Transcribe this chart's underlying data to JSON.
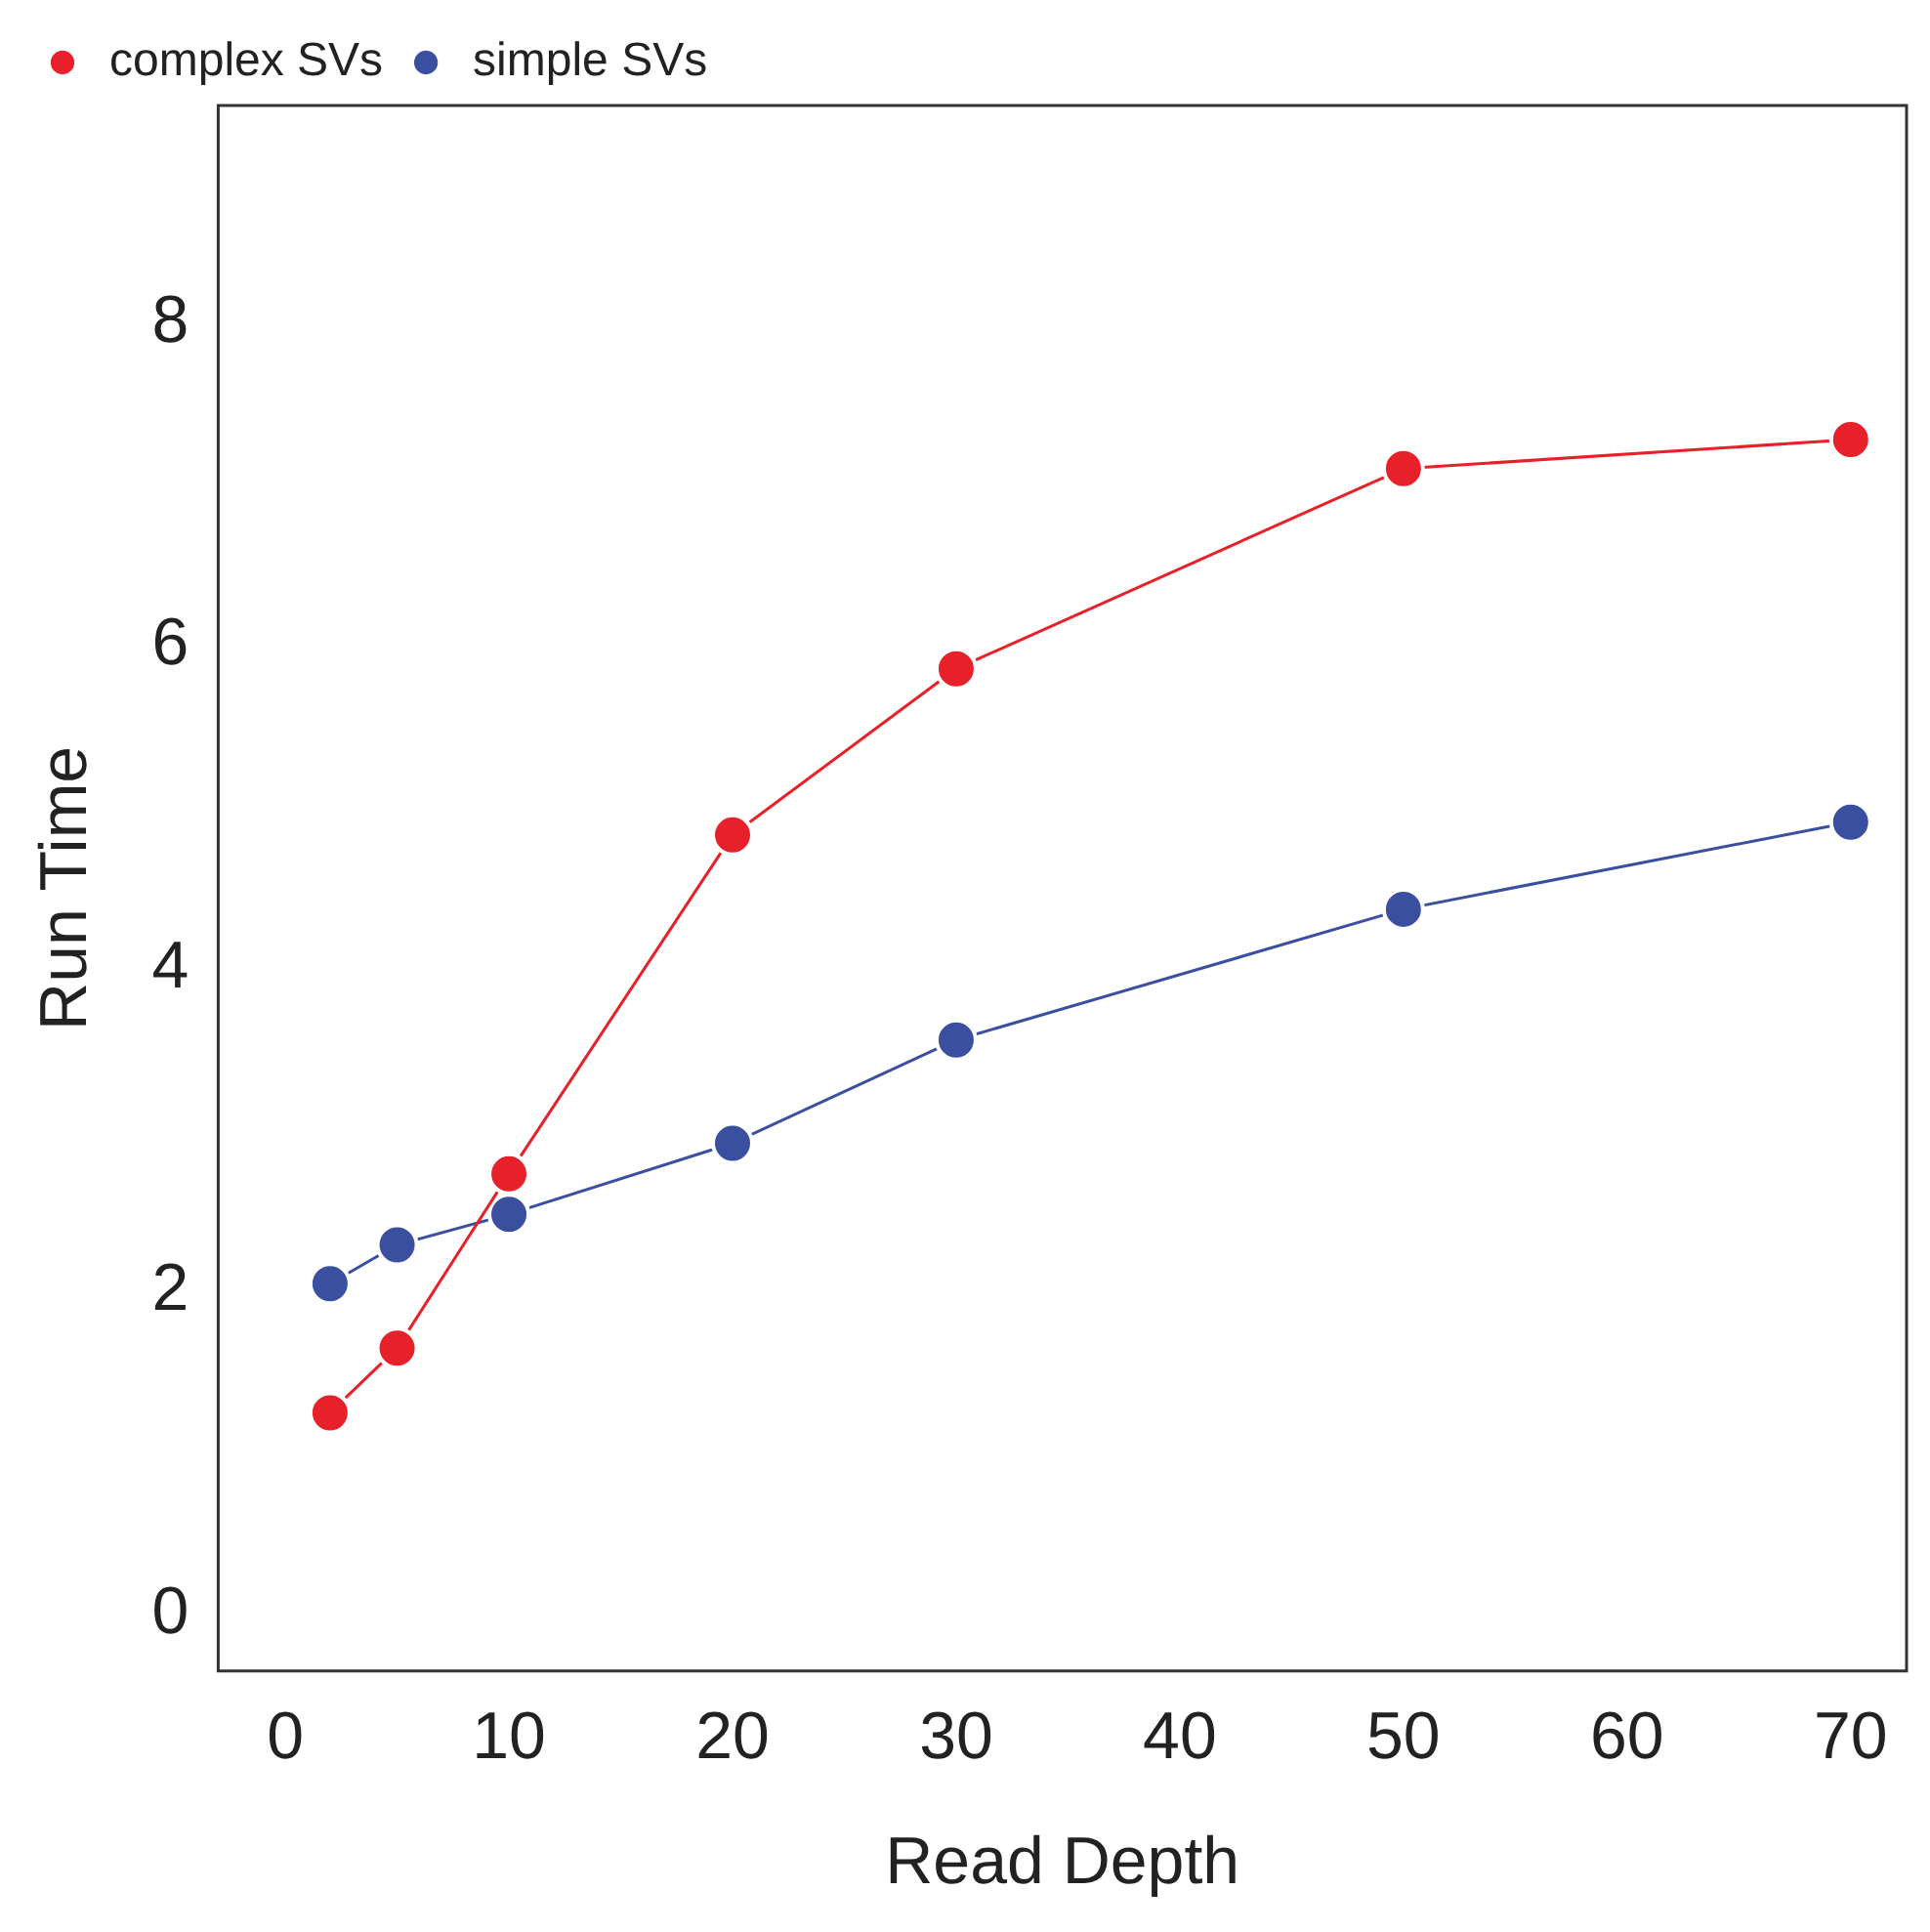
{
  "chart_data": {
    "type": "line",
    "xlabel": "Read Depth",
    "ylabel": "Run Time",
    "x": [
      2,
      5,
      10,
      20,
      30,
      50,
      70
    ],
    "series": [
      {
        "name": "complex SVs",
        "color": "#e8202a",
        "values": [
          1.25,
          1.65,
          2.73,
          4.83,
          5.86,
          7.1,
          7.28
        ]
      },
      {
        "name": "simple SVs",
        "color": "#3a4fa0",
        "values": [
          2.05,
          2.29,
          2.48,
          2.92,
          3.56,
          4.37,
          4.91
        ]
      }
    ],
    "xlim": [
      -3,
      72.5
    ],
    "xticks": [
      0,
      10,
      20,
      30,
      40,
      50,
      60,
      70
    ],
    "ylim": [
      -0.35,
      9.35
    ],
    "yticks": [
      0,
      2,
      4,
      6,
      8
    ],
    "grid": false,
    "legend": "top left",
    "marker": "circle",
    "line_style": "solid"
  }
}
